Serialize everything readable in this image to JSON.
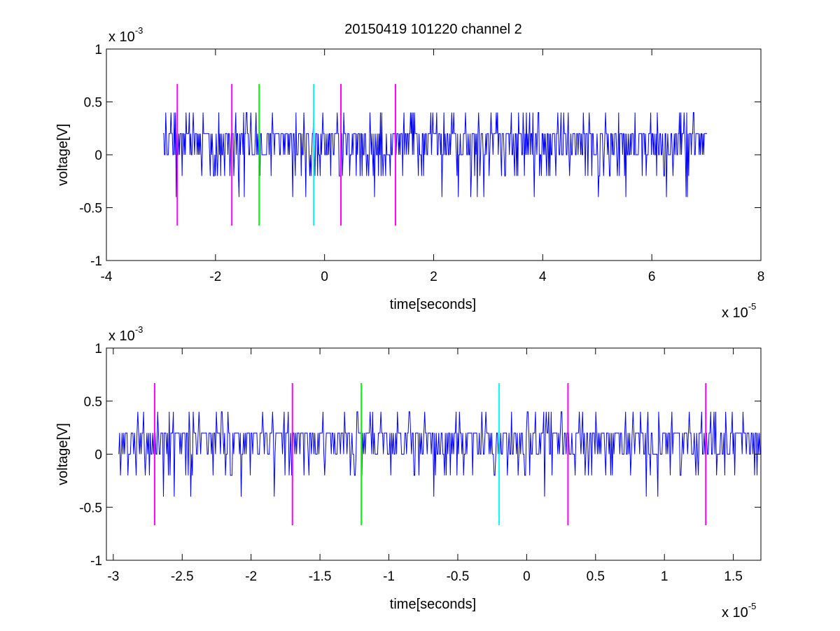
{
  "figure": {
    "title": "20150419 101220 channel 2"
  },
  "chart_data": [
    {
      "type": "line",
      "title": "20150419 101220 channel 2",
      "xlabel": "time[seconds]",
      "ylabel": "voltage[V]",
      "xlim": [
        -4,
        8
      ],
      "ylim": [
        -1,
        1
      ],
      "x_ticks": [
        -4,
        -2,
        0,
        2,
        4,
        6,
        8
      ],
      "y_ticks": [
        -1,
        -0.5,
        0,
        0.5,
        1
      ],
      "x_tick_labels": [
        "-4",
        "-2",
        "0",
        "2",
        "4",
        "6",
        "8"
      ],
      "y_tick_labels": [
        "-1",
        "-0.5",
        "0",
        "0.5",
        "1"
      ],
      "x_multiplier": {
        "base": "x 10",
        "exp": "-5"
      },
      "y_multiplier": {
        "base": "x 10",
        "exp": "-3"
      },
      "grid": false,
      "signal": {
        "color": "#0000ff",
        "x_start": -2.96,
        "x_end": 7.02,
        "levels": [
          -0.2,
          0,
          0.2,
          0.4
        ]
      },
      "markers": [
        {
          "x": -2.7,
          "color": "#ff00ff",
          "ymin": -0.67,
          "ymax": 0.67
        },
        {
          "x": -1.7,
          "color": "#ff00ff",
          "ymin": -0.67,
          "ymax": 0.67
        },
        {
          "x": -1.2,
          "color": "#00ff00",
          "ymin": -0.67,
          "ymax": 0.67
        },
        {
          "x": -0.2,
          "color": "#00ffff",
          "ymin": -0.67,
          "ymax": 0.67
        },
        {
          "x": 0.3,
          "color": "#ff00ff",
          "ymin": -0.67,
          "ymax": 0.67
        },
        {
          "x": 1.3,
          "color": "#ff00ff",
          "ymin": -0.67,
          "ymax": 0.67
        }
      ]
    },
    {
      "type": "line",
      "title": "",
      "xlabel": "time[seconds]",
      "ylabel": "voltage[V]",
      "xlim": [
        -3.05,
        1.7
      ],
      "ylim": [
        -1,
        1
      ],
      "x_ticks": [
        -3,
        -2.5,
        -2,
        -1.5,
        -1,
        -0.5,
        0,
        0.5,
        1,
        1.5
      ],
      "y_ticks": [
        -1,
        -0.5,
        0,
        0.5,
        1
      ],
      "x_tick_labels": [
        "-3",
        "-2.5",
        "-2",
        "-1.5",
        "-1",
        "-0.5",
        "0",
        "0.5",
        "1",
        "1.5"
      ],
      "y_tick_labels": [
        "-1",
        "-0.5",
        "0",
        "0.5",
        "1"
      ],
      "x_multiplier": {
        "base": "x 10",
        "exp": "-5"
      },
      "y_multiplier": {
        "base": "x 10",
        "exp": "-3"
      },
      "grid": false,
      "signal": {
        "color": "#0000ff",
        "x_start": -2.96,
        "x_end": 1.7,
        "levels": [
          -0.2,
          0,
          0.2,
          0.4
        ]
      },
      "markers": [
        {
          "x": -2.7,
          "color": "#ff00ff",
          "ymin": -0.67,
          "ymax": 0.67
        },
        {
          "x": -1.7,
          "color": "#ff00ff",
          "ymin": -0.67,
          "ymax": 0.67
        },
        {
          "x": -1.2,
          "color": "#00ff00",
          "ymin": -0.67,
          "ymax": 0.67
        },
        {
          "x": -0.2,
          "color": "#00ffff",
          "ymin": -0.67,
          "ymax": 0.67
        },
        {
          "x": 0.3,
          "color": "#ff00ff",
          "ymin": -0.67,
          "ymax": 0.67
        },
        {
          "x": 1.3,
          "color": "#ff00ff",
          "ymin": -0.67,
          "ymax": 0.67
        }
      ]
    }
  ]
}
